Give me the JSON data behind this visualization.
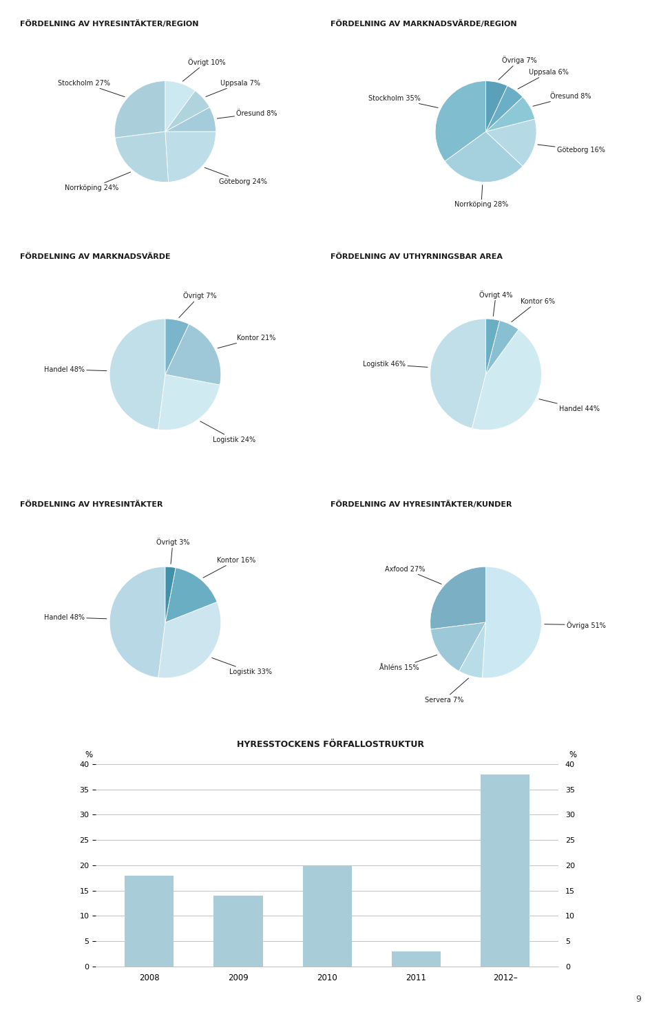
{
  "background_color": "#ffffff",
  "page_number": "9",
  "charts": [
    {
      "title": "FÖRDELNING AV HYRESINTÄKTER/REGION",
      "labels": [
        "Stockholm",
        "Norrköping",
        "Göteborg",
        "Öresund",
        "Uppsala",
        "Övrigt"
      ],
      "values": [
        27,
        24,
        24,
        8,
        7,
        10
      ],
      "colors": [
        "#aacfda",
        "#b5d7e2",
        "#bddde8",
        "#a5ccda",
        "#b0d4de",
        "#cce8f0"
      ],
      "startangle": 90
    },
    {
      "title": "FÖRDELNING AV MARKNADSVÄRDE/REGION",
      "labels": [
        "Stockholm",
        "Norrköping",
        "Göteborg",
        "Öresund",
        "Uppsala",
        "Övriga"
      ],
      "values": [
        35,
        28,
        16,
        8,
        6,
        7
      ],
      "colors": [
        "#7fbdcf",
        "#a5d0de",
        "#b5dae6",
        "#8dc8d6",
        "#6aafc5",
        "#5aa0ba"
      ],
      "startangle": 90
    },
    {
      "title": "FÖRDELNING AV MARKNADSVÄRDE",
      "labels": [
        "Handel",
        "Logistik",
        "Kontor",
        "Övrigt"
      ],
      "values": [
        48,
        24,
        21,
        7
      ],
      "colors": [
        "#c0dfe8",
        "#d0eaf2",
        "#9ec8d8",
        "#7ab5cc"
      ],
      "startangle": 90
    },
    {
      "title": "FÖRDELNING AV UTHYRNINGSBAR AREA",
      "labels": [
        "Logistik",
        "Handel",
        "Kontor",
        "Övrigt"
      ],
      "values": [
        46,
        44,
        6,
        4
      ],
      "colors": [
        "#c0dfe8",
        "#d0eaf2",
        "#88c0d2",
        "#6aaec4"
      ],
      "startangle": 90
    },
    {
      "title": "FÖRDELNING AV HYRESINTÄKTER",
      "labels": [
        "Handel",
        "Logistik",
        "Kontor",
        "Övrigt"
      ],
      "values": [
        48,
        33,
        16,
        3
      ],
      "colors": [
        "#b8d8e6",
        "#cce5ef",
        "#6aaec4",
        "#4090aa"
      ],
      "startangle": 90
    },
    {
      "title": "FÖRDELNING AV HYRESINTÄKTER/KUNDER",
      "labels": [
        "Axfood",
        "Åhléns",
        "Servera",
        "Övriga"
      ],
      "values": [
        27,
        15,
        7,
        51
      ],
      "colors": [
        "#7aafc4",
        "#9dc8d8",
        "#b8dce8",
        "#cce8f2"
      ],
      "startangle": 90
    }
  ],
  "bar_chart": {
    "title": "HYRESSTOCKENS FÖRFALLOSTRUKTUR",
    "categories": [
      "2008",
      "2009",
      "2010",
      "2011",
      "2012–"
    ],
    "values": [
      18,
      14,
      20,
      3,
      38
    ],
    "bar_color": "#a8cdd8",
    "ylabel": "%",
    "ylim": [
      0,
      40
    ],
    "yticks": [
      0,
      5,
      10,
      15,
      20,
      25,
      30,
      35,
      40
    ]
  }
}
